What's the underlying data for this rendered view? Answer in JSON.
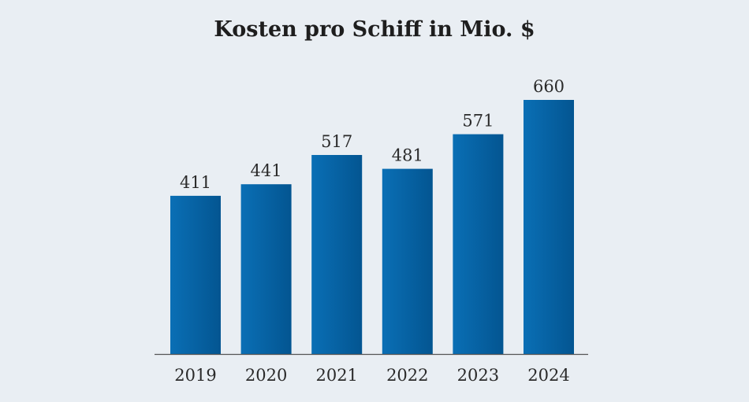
{
  "chart_data": {
    "type": "bar",
    "title": "Kosten pro Schiff in Mio. $",
    "xlabel": "",
    "ylabel": "",
    "categories": [
      "2019",
      "2020",
      "2021",
      "2022",
      "2023",
      "2024"
    ],
    "values": [
      411,
      441,
      517,
      481,
      571,
      660
    ],
    "data_labels": [
      "411",
      "441",
      "517",
      "481",
      "571",
      "660"
    ],
    "ylim": [
      0,
      660
    ],
    "grid": false,
    "legend": "none",
    "colors": {
      "bar_light": "#0a6fb5",
      "bar_dark": "#035591",
      "axis": "#555555",
      "text": "#2a2a2a",
      "background": "#e9eef3"
    }
  }
}
